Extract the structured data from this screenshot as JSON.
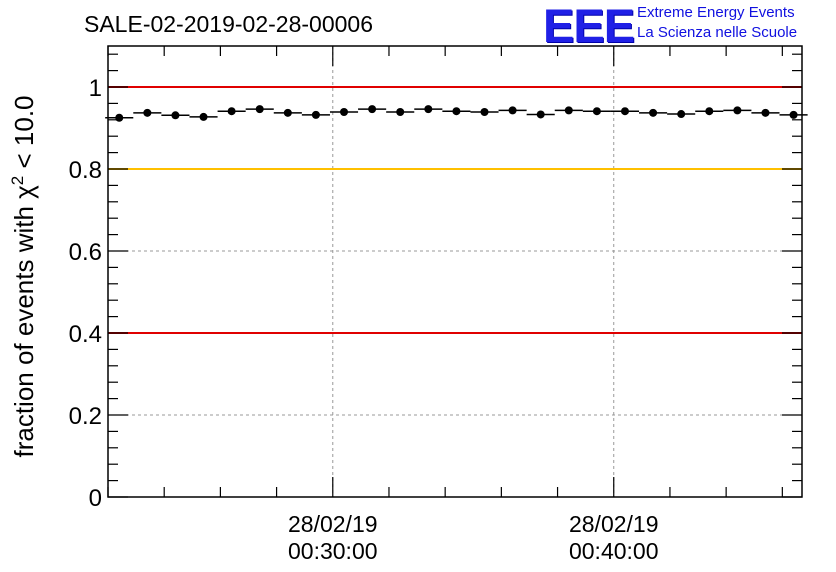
{
  "header": {
    "title": "SALE-02-2019-02-28-00006",
    "logo_mark": "EEE",
    "logo_line1": "Extreme Energy Events",
    "logo_line2": "La Scienza nelle Scuole"
  },
  "colors": {
    "red_line": "#e00000",
    "yellow_line": "#ffc000",
    "logo": "#2020e6",
    "marker": "#000000"
  },
  "chart_data": {
    "type": "scatter",
    "title": "SALE-02-2019-02-28-00006",
    "ylabel_parts": {
      "pre": "fraction of events with ",
      "sym": "χ",
      "sup": "2",
      "post": " < 10.0"
    },
    "xlabel": "",
    "ylim": [
      0,
      1.1
    ],
    "xlim_minutes": [
      22,
      46.7
    ],
    "yticks": [
      0,
      0.2,
      0.4,
      0.6,
      0.8,
      1
    ],
    "ytick_labels": [
      "0",
      "0.2",
      "0.4",
      "0.6",
      "0.8",
      "1"
    ],
    "xticks": [
      {
        "minute": 30,
        "date": "28/02/19",
        "time": "00:30:00"
      },
      {
        "minute": 40,
        "date": "28/02/19",
        "time": "00:40:00"
      }
    ],
    "grid": true,
    "reference_lines": [
      {
        "y": 1.0,
        "color": "#e00000"
      },
      {
        "y": 0.8,
        "color": "#ffc000"
      },
      {
        "y": 0.4,
        "color": "#e00000"
      }
    ],
    "bin_width_minutes": 1,
    "series": [
      {
        "name": "fraction",
        "x_minutes": [
          22.4,
          23.4,
          24.4,
          25.4,
          26.4,
          27.4,
          28.4,
          29.4,
          30.4,
          31.4,
          32.4,
          33.4,
          34.4,
          35.4,
          36.4,
          37.4,
          38.4,
          39.4,
          40.4,
          41.4,
          42.4,
          43.4,
          44.4,
          45.4,
          46.4
        ],
        "values": [
          0.925,
          0.937,
          0.931,
          0.927,
          0.941,
          0.946,
          0.937,
          0.932,
          0.939,
          0.946,
          0.939,
          0.946,
          0.941,
          0.939,
          0.943,
          0.933,
          0.943,
          0.941,
          0.941,
          0.937,
          0.934,
          0.941,
          0.943,
          0.937,
          0.932
        ]
      }
    ]
  }
}
